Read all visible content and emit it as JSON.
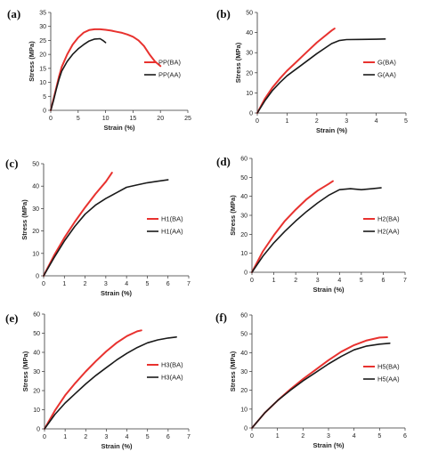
{
  "colors": {
    "BA": "#e8322f",
    "AA": "#1a1a1a",
    "axis": "#333333",
    "text": "#222222"
  },
  "chart_data": [
    {
      "type": "line",
      "panel_label": "(a)",
      "xlabel": "Strain (%)",
      "ylabel": "Stress (MPa)",
      "xlim": [
        0,
        25
      ],
      "ylim": [
        0,
        35
      ],
      "xticks": [
        0,
        5,
        10,
        15,
        20,
        25
      ],
      "yticks": [
        0,
        5,
        10,
        15,
        20,
        25,
        30,
        35
      ],
      "grid": false,
      "legend": "right-middle",
      "series": [
        {
          "name": "PP(BA)",
          "key": "BA",
          "points": [
            [
              0,
              0
            ],
            [
              0.5,
              4
            ],
            [
              1,
              8
            ],
            [
              1.5,
              12
            ],
            [
              2,
              15.5
            ],
            [
              3,
              20
            ],
            [
              4,
              23.5
            ],
            [
              5,
              26
            ],
            [
              6,
              27.8
            ],
            [
              7,
              28.7
            ],
            [
              8,
              29
            ],
            [
              9,
              29
            ],
            [
              10,
              28.8
            ],
            [
              11,
              28.5
            ],
            [
              12,
              28.1
            ],
            [
              13,
              27.7
            ],
            [
              14,
              27.1
            ],
            [
              15,
              26.3
            ],
            [
              16,
              25
            ],
            [
              17,
              23
            ],
            [
              18,
              20
            ],
            [
              19,
              17.5
            ],
            [
              20,
              15.8
            ]
          ]
        },
        {
          "name": "PP(AA)",
          "key": "AA",
          "points": [
            [
              0,
              0
            ],
            [
              0.5,
              3.5
            ],
            [
              1,
              7.5
            ],
            [
              1.5,
              11
            ],
            [
              2,
              14
            ],
            [
              3,
              17.5
            ],
            [
              4,
              20
            ],
            [
              5,
              22
            ],
            [
              6,
              23.5
            ],
            [
              7,
              24.8
            ],
            [
              8,
              25.5
            ],
            [
              9,
              25.6
            ],
            [
              9.5,
              25
            ],
            [
              10,
              24.2
            ]
          ]
        }
      ]
    },
    {
      "type": "line",
      "panel_label": "(b)",
      "xlabel": "Strain (%)",
      "ylabel": "Stress (MPa)",
      "xlim": [
        0,
        5
      ],
      "ylim": [
        0,
        50
      ],
      "xticks": [
        0,
        1,
        2,
        3,
        4,
        5
      ],
      "yticks": [
        0,
        10,
        20,
        30,
        40,
        50
      ],
      "grid": false,
      "legend": "right-middle",
      "series": [
        {
          "name": "G(BA)",
          "key": "BA",
          "points": [
            [
              0,
              0
            ],
            [
              0.25,
              7
            ],
            [
              0.5,
              12.5
            ],
            [
              0.75,
              17
            ],
            [
              1,
              21
            ],
            [
              1.25,
              24.5
            ],
            [
              1.5,
              28
            ],
            [
              1.75,
              31.5
            ],
            [
              2,
              35
            ],
            [
              2.25,
              38
            ],
            [
              2.5,
              41
            ],
            [
              2.6,
              42
            ]
          ]
        },
        {
          "name": "G(AA)",
          "key": "AA",
          "points": [
            [
              0,
              0
            ],
            [
              0.25,
              6
            ],
            [
              0.5,
              11
            ],
            [
              0.75,
              15
            ],
            [
              1,
              18.5
            ],
            [
              1.5,
              24
            ],
            [
              2,
              29.5
            ],
            [
              2.5,
              34.5
            ],
            [
              2.75,
              36
            ],
            [
              3,
              36.5
            ],
            [
              3.5,
              36.6
            ],
            [
              4,
              36.7
            ],
            [
              4.3,
              36.8
            ]
          ]
        }
      ]
    },
    {
      "type": "line",
      "panel_label": "(c)",
      "xlabel": "Strain (%)",
      "ylabel": "Stress (MPa)",
      "xlim": [
        0,
        7
      ],
      "ylim": [
        0,
        50
      ],
      "xticks": [
        0,
        1,
        2,
        3,
        4,
        5,
        6,
        7
      ],
      "yticks": [
        0,
        10,
        20,
        30,
        40,
        50
      ],
      "grid": false,
      "legend": "right-middle",
      "series": [
        {
          "name": "H1(BA)",
          "key": "BA",
          "points": [
            [
              0,
              0
            ],
            [
              0.5,
              9
            ],
            [
              1,
              17
            ],
            [
              1.5,
              24
            ],
            [
              2,
              30.5
            ],
            [
              2.5,
              36.5
            ],
            [
              3,
              42
            ],
            [
              3.3,
              46
            ]
          ]
        },
        {
          "name": "H1(AA)",
          "key": "AA",
          "points": [
            [
              0,
              0
            ],
            [
              0.5,
              8
            ],
            [
              1,
              15.5
            ],
            [
              1.5,
              22
            ],
            [
              2,
              27.5
            ],
            [
              2.5,
              31.5
            ],
            [
              3,
              34.5
            ],
            [
              3.5,
              37
            ],
            [
              4,
              39.5
            ],
            [
              4.5,
              40.5
            ],
            [
              5,
              41.5
            ],
            [
              5.5,
              42.2
            ],
            [
              6,
              42.8
            ]
          ]
        }
      ]
    },
    {
      "type": "line",
      "panel_label": "(d)",
      "xlabel": "Strain (%)",
      "ylabel": "Stress (MPa)",
      "xlim": [
        0,
        7
      ],
      "ylim": [
        0,
        60
      ],
      "xticks": [
        0,
        1,
        2,
        3,
        4,
        5,
        6,
        7
      ],
      "yticks": [
        0,
        10,
        20,
        30,
        40,
        50,
        60
      ],
      "grid": false,
      "legend": "right-middle",
      "series": [
        {
          "name": "H2(BA)",
          "key": "BA",
          "points": [
            [
              0,
              0
            ],
            [
              0.5,
              11
            ],
            [
              1,
              19.5
            ],
            [
              1.5,
              27
            ],
            [
              2,
              33
            ],
            [
              2.5,
              38.5
            ],
            [
              3,
              43
            ],
            [
              3.5,
              46.5
            ],
            [
              3.7,
              48
            ]
          ]
        },
        {
          "name": "H2(AA)",
          "key": "AA",
          "points": [
            [
              0,
              0
            ],
            [
              0.5,
              8.5
            ],
            [
              1,
              15.5
            ],
            [
              1.5,
              21.5
            ],
            [
              2,
              27
            ],
            [
              2.5,
              32
            ],
            [
              3,
              36.5
            ],
            [
              3.5,
              40.5
            ],
            [
              4,
              43.5
            ],
            [
              4.5,
              44
            ],
            [
              5,
              43.5
            ],
            [
              5.5,
              44
            ],
            [
              5.9,
              44.5
            ]
          ]
        }
      ]
    },
    {
      "type": "line",
      "panel_label": "(e)",
      "xlabel": "Strain (%)",
      "ylabel": "Stress (MPa)",
      "xlim": [
        0,
        7
      ],
      "ylim": [
        0,
        60
      ],
      "xticks": [
        0,
        1,
        2,
        3,
        4,
        5,
        6,
        7
      ],
      "yticks": [
        0,
        10,
        20,
        30,
        40,
        50,
        60
      ],
      "grid": false,
      "legend": "right-middle",
      "series": [
        {
          "name": "H3(BA)",
          "key": "BA",
          "points": [
            [
              0,
              0
            ],
            [
              0.5,
              9.5
            ],
            [
              1,
              17.5
            ],
            [
              1.5,
              24
            ],
            [
              2,
              30
            ],
            [
              2.5,
              35.5
            ],
            [
              3,
              40.5
            ],
            [
              3.5,
              45
            ],
            [
              4,
              48.5
            ],
            [
              4.5,
              51
            ],
            [
              4.7,
              51.5
            ]
          ]
        },
        {
          "name": "H3(AA)",
          "key": "AA",
          "points": [
            [
              0,
              0
            ],
            [
              0.5,
              7.5
            ],
            [
              1,
              13.5
            ],
            [
              1.5,
              18.5
            ],
            [
              2,
              23.5
            ],
            [
              2.5,
              28
            ],
            [
              3,
              32
            ],
            [
              3.5,
              36
            ],
            [
              4,
              39.5
            ],
            [
              4.5,
              42.5
            ],
            [
              5,
              45
            ],
            [
              5.5,
              46.5
            ],
            [
              6,
              47.5
            ],
            [
              6.4,
              48
            ]
          ]
        }
      ]
    },
    {
      "type": "line",
      "panel_label": "(f)",
      "xlabel": "Strain (%)",
      "ylabel": "Stress (MPa)",
      "xlim": [
        0,
        6
      ],
      "ylim": [
        0,
        60
      ],
      "xticks": [
        0,
        1,
        2,
        3,
        4,
        5,
        6
      ],
      "yticks": [
        0,
        10,
        20,
        30,
        40,
        50,
        60
      ],
      "grid": false,
      "legend": "right-middle",
      "series": [
        {
          "name": "H5(BA)",
          "key": "BA",
          "points": [
            [
              0,
              0
            ],
            [
              0.5,
              8
            ],
            [
              1,
              14.5
            ],
            [
              1.5,
              20.5
            ],
            [
              2,
              26
            ],
            [
              2.5,
              31
            ],
            [
              3,
              36
            ],
            [
              3.5,
              40.5
            ],
            [
              4,
              44
            ],
            [
              4.5,
              46.5
            ],
            [
              5,
              48
            ],
            [
              5.3,
              48.2
            ]
          ]
        },
        {
          "name": "H5(AA)",
          "key": "AA",
          "points": [
            [
              0,
              0
            ],
            [
              0.5,
              8
            ],
            [
              1,
              14.5
            ],
            [
              1.5,
              20
            ],
            [
              2,
              25
            ],
            [
              2.5,
              29.5
            ],
            [
              3,
              34
            ],
            [
              3.5,
              38
            ],
            [
              4,
              41.5
            ],
            [
              4.5,
              43.5
            ],
            [
              5,
              44.5
            ],
            [
              5.4,
              45
            ]
          ]
        }
      ]
    }
  ]
}
